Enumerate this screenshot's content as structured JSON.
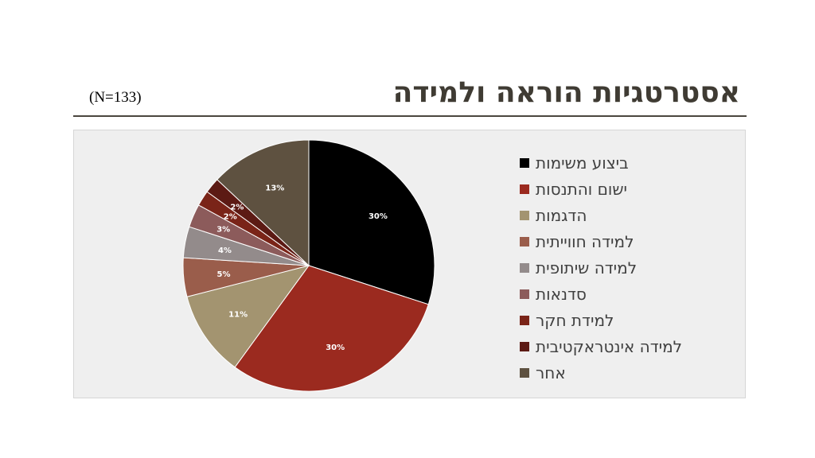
{
  "title": "אסטרטגיות הוראה ולמידה",
  "sample": "(N=133)",
  "chart_data": {
    "type": "pie",
    "categories": [
      "ביצוע משימות",
      "ישום והתנסות",
      "הדגמות",
      "למידה חווייתית",
      "למידה שיתופית",
      "סדנאות",
      "למידת חקר",
      "למידה אינטראקטיבית",
      "אחר"
    ],
    "values": [
      30,
      30,
      11,
      5,
      4,
      3,
      2,
      2,
      13
    ],
    "labels": [
      "30%",
      "30%",
      "11%",
      "5%",
      "4%",
      "3%",
      "2%",
      "2%",
      "13%"
    ],
    "colors": [
      "#000000",
      "#9b2a1f",
      "#a39470",
      "#9a5d4b",
      "#938b8b",
      "#8c5b5b",
      "#7a2418",
      "#5c1a14",
      "#5e5140"
    ],
    "label_colors": [
      "#ffffff",
      "#ffffff",
      "#ffffff",
      "#ffffff",
      "#ffffff",
      "#ffffff",
      "#ffffff",
      "#ffffff",
      "#ffffff"
    ],
    "legend_position": "right"
  }
}
